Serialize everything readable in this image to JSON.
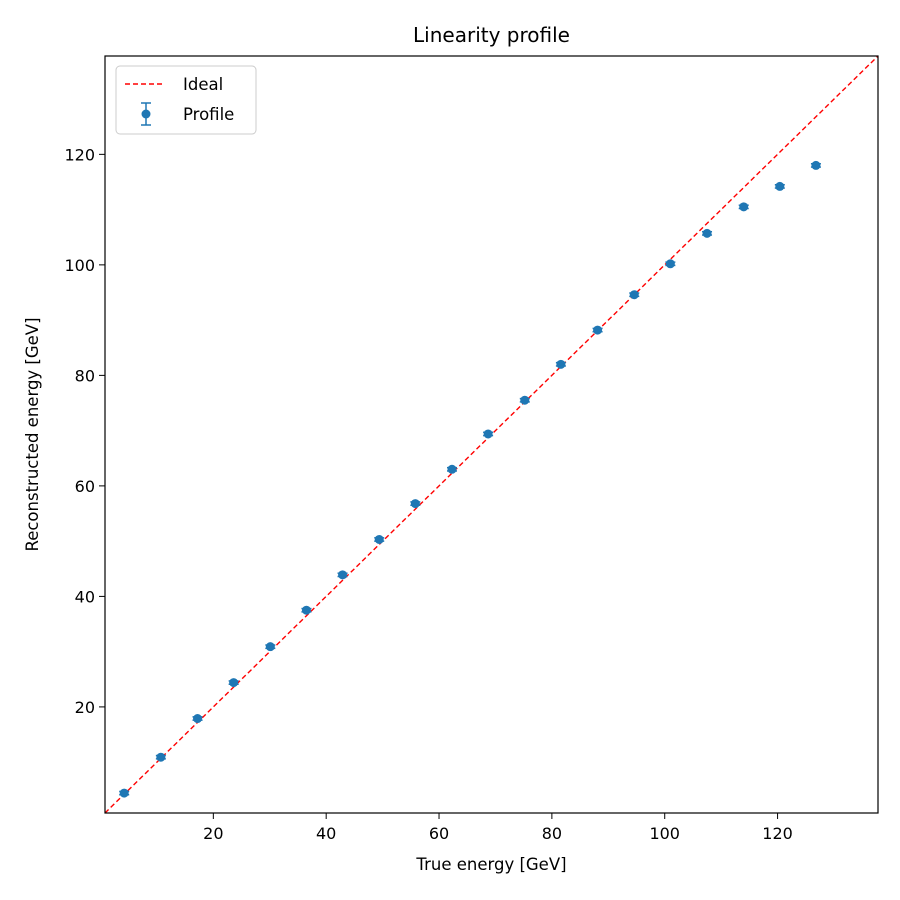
{
  "chart_data": {
    "type": "scatter",
    "title": "Linearity profile",
    "xlabel": "True energy [GeV]",
    "ylabel": "Reconstructed energy [GeV]",
    "xlim": [
      0.8,
      137.8
    ],
    "ylim": [
      0.8,
      137.8
    ],
    "x_ticks": [
      20,
      40,
      60,
      80,
      100,
      120
    ],
    "y_ticks": [
      20,
      40,
      60,
      80,
      100,
      120
    ],
    "grid": false,
    "legend_position": "top-left",
    "series": [
      {
        "name": "Ideal",
        "kind": "line",
        "style": "dashed",
        "color": "#ff0000",
        "x": [
          0.8,
          137.8
        ],
        "y": [
          0.8,
          137.8
        ]
      },
      {
        "name": "Profile",
        "kind": "errorbar",
        "color": "#1f77b4",
        "x": [
          4.2,
          10.7,
          17.2,
          23.6,
          30.1,
          36.5,
          42.9,
          49.4,
          55.8,
          62.3,
          68.7,
          75.2,
          81.6,
          88.1,
          94.6,
          101.0,
          107.5,
          114.0,
          120.4,
          126.8
        ],
        "y": [
          4.4,
          10.9,
          17.9,
          24.4,
          30.9,
          37.5,
          43.9,
          50.3,
          56.8,
          63.0,
          69.4,
          75.5,
          82.0,
          88.2,
          94.6,
          100.2,
          105.7,
          110.5,
          114.2,
          118.0
        ],
        "yerr": [
          0.3,
          0.3,
          0.3,
          0.3,
          0.3,
          0.3,
          0.3,
          0.3,
          0.3,
          0.3,
          0.3,
          0.3,
          0.3,
          0.3,
          0.3,
          0.3,
          0.3,
          0.3,
          0.3,
          0.3
        ]
      }
    ]
  }
}
